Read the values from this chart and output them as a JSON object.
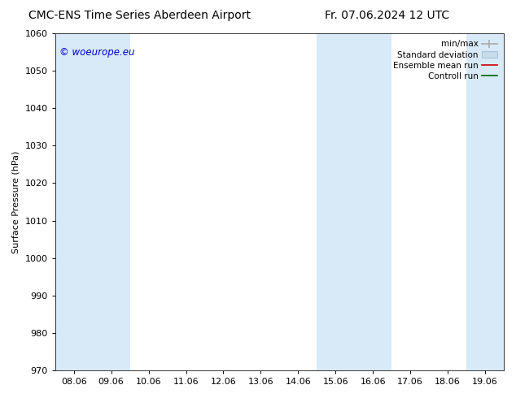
{
  "title_left": "CMC-ENS Time Series Aberdeen Airport",
  "title_right": "Fr. 07.06.2024 12 UTC",
  "ylabel": "Surface Pressure (hPa)",
  "ylim": [
    970,
    1060
  ],
  "yticks": [
    970,
    980,
    990,
    1000,
    1010,
    1020,
    1030,
    1040,
    1050,
    1060
  ],
  "xtick_labels": [
    "08.06",
    "09.06",
    "10.06",
    "11.06",
    "12.06",
    "13.06",
    "14.06",
    "15.06",
    "16.06",
    "17.06",
    "18.06",
    "19.06"
  ],
  "xtick_positions": [
    0,
    1,
    2,
    3,
    4,
    5,
    6,
    7,
    8,
    9,
    10,
    11
  ],
  "shaded_ranges": [
    [
      -0.5,
      0.5
    ],
    [
      0.5,
      1.5
    ],
    [
      6.5,
      7.5
    ],
    [
      7.5,
      8.5
    ],
    [
      10.5,
      11.5
    ]
  ],
  "shaded_color": "#d8eaf8",
  "watermark_text": "© woeurope.eu",
  "watermark_color": "#0000cc",
  "legend_labels": [
    "min/max",
    "Standard deviation",
    "Ensemble mean run",
    "Controll run"
  ],
  "background_color": "#ffffff",
  "title_fontsize": 10,
  "axis_fontsize": 8,
  "tick_fontsize": 8,
  "legend_fontsize": 7.5
}
